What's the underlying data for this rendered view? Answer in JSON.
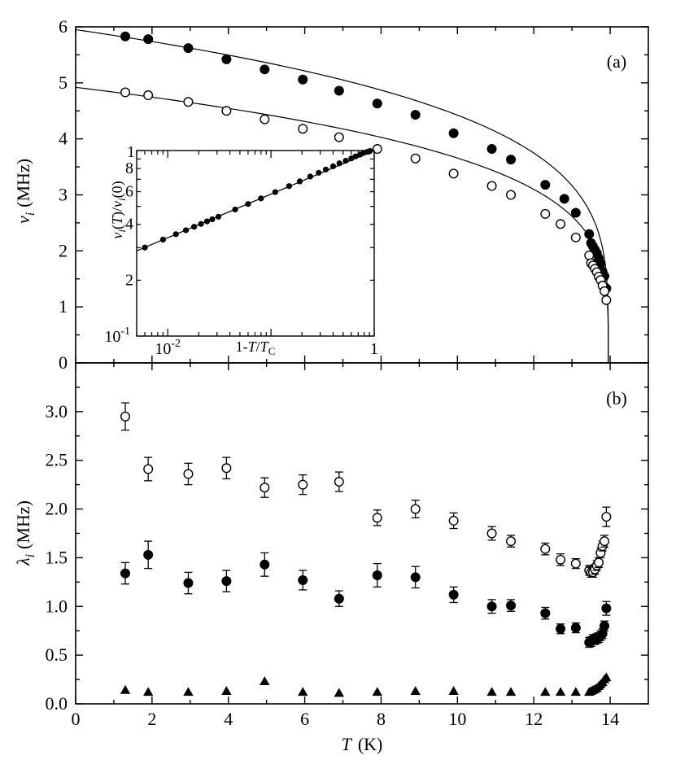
{
  "chart_data": [
    {
      "type": "scatter",
      "panel_label": "(a)",
      "ylabel_symbol": "ν",
      "ylabel_sub": "i",
      "ylabel_unit": "(MHz)",
      "xlim": [
        0,
        15
      ],
      "ylim": [
        0,
        6
      ],
      "xticks": [
        0,
        2,
        4,
        6,
        8,
        10,
        12,
        14
      ],
      "yticks": [
        0,
        1,
        2,
        3,
        4,
        5,
        6
      ],
      "ytick_labels": [
        "0",
        "1",
        "2",
        "3",
        "4",
        "5",
        "6"
      ],
      "grid": false,
      "series": [
        {
          "marker": "filled-circle",
          "x": [
            1.3,
            1.9,
            2.95,
            3.95,
            4.95,
            5.95,
            6.9,
            7.9,
            8.9,
            9.9,
            10.9,
            11.4,
            12.3,
            12.8,
            13.1,
            13.45,
            13.5,
            13.55,
            13.6,
            13.65,
            13.7,
            13.75,
            13.8,
            13.85,
            13.9
          ],
          "y": [
            5.83,
            5.78,
            5.62,
            5.42,
            5.24,
            5.06,
            4.86,
            4.63,
            4.43,
            4.1,
            3.82,
            3.63,
            3.18,
            2.93,
            2.68,
            2.3,
            2.14,
            2.08,
            2.02,
            1.96,
            1.87,
            1.77,
            1.63,
            1.55,
            1.33
          ]
        },
        {
          "marker": "open-circle",
          "x": [
            1.3,
            1.9,
            2.95,
            3.95,
            4.95,
            5.95,
            6.9,
            7.9,
            8.9,
            9.9,
            10.9,
            11.4,
            12.3,
            12.7,
            13.1,
            13.45,
            13.5,
            13.55,
            13.6,
            13.65,
            13.7,
            13.75,
            13.8,
            13.85,
            13.9
          ],
          "y": [
            4.83,
            4.78,
            4.66,
            4.5,
            4.35,
            4.18,
            4.03,
            3.82,
            3.65,
            3.38,
            3.16,
            3.0,
            2.66,
            2.48,
            2.24,
            1.92,
            1.78,
            1.74,
            1.68,
            1.62,
            1.54,
            1.48,
            1.38,
            1.28,
            1.12
          ]
        }
      ],
      "fits": [
        {
          "form": "A*(1-T/Tc)^beta",
          "A": 5.95,
          "Tc": 13.95,
          "beta": 0.235
        },
        {
          "form": "A*(1-T/Tc)^beta",
          "A": 4.92,
          "Tc": 13.95,
          "beta": 0.235
        }
      ],
      "inset": {
        "type": "scatter",
        "scale": "log-log",
        "xlabel_prefix": "1-",
        "xlabel_T": "T",
        "xlabel_slash": "/",
        "xlabel_Tc": "T",
        "xlabel_Tc_sub": "C",
        "ylabel": "ν_i(T)/ν_i(0)",
        "xlim": [
          0.005,
          1
        ],
        "ylim": [
          0.1,
          1
        ],
        "xtick_labels": [
          {
            "mant": "10",
            "exp": "-2"
          },
          {
            "mant": "1",
            "exp": ""
          }
        ],
        "ytick_labels": [
          {
            "mant": "10",
            "exp": "-1"
          },
          {
            "mant": "1",
            "exp": ""
          }
        ],
        "ytick_minor_labels": [
          "2",
          "4",
          "6",
          "8"
        ],
        "points_x": [
          0.006,
          0.009,
          0.012,
          0.015,
          0.018,
          0.021,
          0.024,
          0.027,
          0.031,
          0.045,
          0.06,
          0.08,
          0.11,
          0.15,
          0.19,
          0.24,
          0.29,
          0.34,
          0.4,
          0.46,
          0.53,
          0.6,
          0.66,
          0.73,
          0.79,
          0.86,
          0.91
        ],
        "points_y": [
          0.3,
          0.331,
          0.354,
          0.372,
          0.388,
          0.402,
          0.415,
          0.426,
          0.44,
          0.481,
          0.515,
          0.552,
          0.597,
          0.643,
          0.682,
          0.724,
          0.759,
          0.79,
          0.822,
          0.853,
          0.881,
          0.907,
          0.93,
          0.951,
          0.97,
          0.985,
          0.994
        ],
        "fit": {
          "form": "x^beta",
          "beta": 0.235
        }
      }
    },
    {
      "type": "scatter",
      "panel_label": "(b)",
      "ylabel_symbol": "λ",
      "ylabel_sub": "i",
      "ylabel_unit": "(MHz)",
      "xlabel_symbol": "T",
      "xlabel_unit": "(K)",
      "xlim": [
        0,
        15
      ],
      "ylim": [
        0,
        3.5
      ],
      "xticks": [
        0,
        2,
        4,
        6,
        8,
        10,
        12,
        14
      ],
      "xtick_labels": [
        "0",
        "2",
        "4",
        "6",
        "8",
        "10",
        "12",
        "14"
      ],
      "yticks": [
        0,
        0.5,
        1.0,
        1.5,
        2.0,
        2.5,
        3.0
      ],
      "ytick_labels": [
        "0.0",
        "0.5",
        "1.0",
        "1.5",
        "2.0",
        "2.5",
        "3.0"
      ],
      "grid": false,
      "series": [
        {
          "marker": "open-circle",
          "x": [
            1.3,
            1.9,
            2.95,
            3.95,
            4.95,
            5.95,
            6.9,
            7.9,
            8.9,
            9.9,
            10.9,
            11.4,
            12.3,
            12.7,
            13.1,
            13.45,
            13.5,
            13.55,
            13.6,
            13.65,
            13.7,
            13.75,
            13.8,
            13.85,
            13.9
          ],
          "y": [
            2.95,
            2.41,
            2.36,
            2.42,
            2.22,
            2.25,
            2.28,
            1.91,
            2.0,
            1.88,
            1.75,
            1.67,
            1.59,
            1.48,
            1.44,
            1.37,
            1.35,
            1.35,
            1.38,
            1.42,
            1.45,
            1.55,
            1.62,
            1.67,
            1.92
          ],
          "err": [
            0.14,
            0.12,
            0.11,
            0.11,
            0.1,
            0.1,
            0.1,
            0.08,
            0.09,
            0.08,
            0.07,
            0.06,
            0.06,
            0.06,
            0.05,
            0.05,
            0.05,
            0.05,
            0.05,
            0.05,
            0.05,
            0.05,
            0.05,
            0.06,
            0.1
          ]
        },
        {
          "marker": "filled-circle",
          "x": [
            1.3,
            1.9,
            2.95,
            3.95,
            4.95,
            5.95,
            6.9,
            7.9,
            8.9,
            9.9,
            10.9,
            11.4,
            12.3,
            12.7,
            13.1,
            13.45,
            13.5,
            13.55,
            13.6,
            13.65,
            13.7,
            13.75,
            13.8,
            13.85,
            13.9
          ],
          "y": [
            1.34,
            1.53,
            1.24,
            1.26,
            1.43,
            1.27,
            1.08,
            1.32,
            1.3,
            1.12,
            1.0,
            1.01,
            0.93,
            0.77,
            0.78,
            0.63,
            0.64,
            0.66,
            0.66,
            0.67,
            0.68,
            0.7,
            0.72,
            0.8,
            0.98
          ],
          "err": [
            0.11,
            0.14,
            0.11,
            0.11,
            0.12,
            0.1,
            0.08,
            0.12,
            0.11,
            0.08,
            0.07,
            0.06,
            0.06,
            0.05,
            0.05,
            0.05,
            0.05,
            0.05,
            0.05,
            0.05,
            0.05,
            0.05,
            0.05,
            0.05,
            0.07
          ]
        },
        {
          "marker": "filled-triangle",
          "x": [
            1.3,
            1.9,
            2.95,
            3.95,
            4.95,
            5.95,
            6.9,
            7.9,
            8.9,
            9.9,
            10.9,
            11.4,
            12.3,
            12.7,
            13.1,
            13.45,
            13.5,
            13.55,
            13.6,
            13.65,
            13.7,
            13.75,
            13.8,
            13.85,
            13.9
          ],
          "y": [
            0.14,
            0.12,
            0.12,
            0.13,
            0.23,
            0.12,
            0.11,
            0.12,
            0.13,
            0.13,
            0.12,
            0.12,
            0.12,
            0.12,
            0.12,
            0.12,
            0.13,
            0.14,
            0.15,
            0.16,
            0.18,
            0.2,
            0.22,
            0.25,
            0.27
          ]
        }
      ]
    }
  ]
}
